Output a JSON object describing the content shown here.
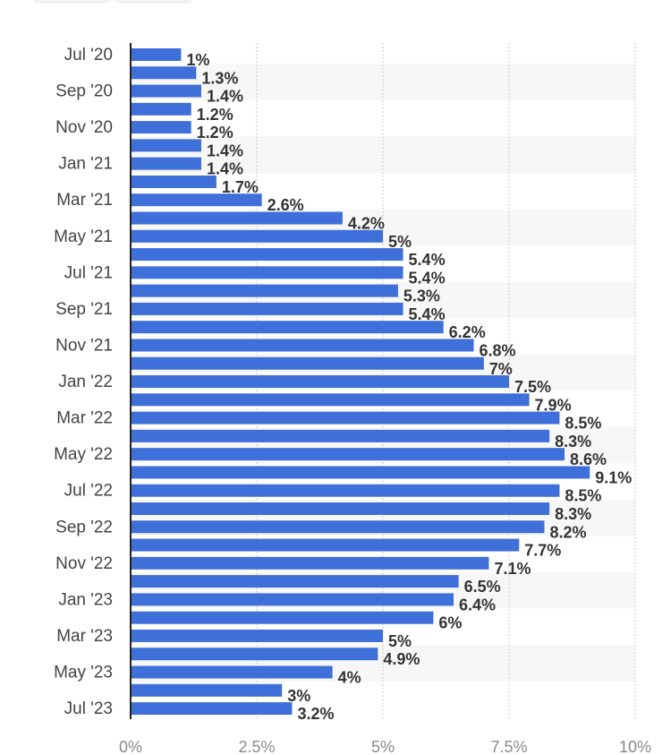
{
  "chart_data": {
    "type": "bar",
    "orientation": "horizontal",
    "categories": [
      "Jul '20",
      "Aug '20",
      "Sep '20",
      "Oct '20",
      "Nov '20",
      "Dec '20",
      "Jan '21",
      "Feb '21",
      "Mar '21",
      "Apr '21",
      "May '21",
      "Jun '21",
      "Jul '21",
      "Aug '21",
      "Sep '21",
      "Oct '21",
      "Nov '21",
      "Dec '21",
      "Jan '22",
      "Feb '22",
      "Mar '22",
      "Apr '22",
      "May '22",
      "Jun '22",
      "Jul '22",
      "Aug '22",
      "Sep '22",
      "Oct '22",
      "Nov '22",
      "Dec '22",
      "Jan '23",
      "Feb '23",
      "Mar '23",
      "Apr '23",
      "May '23",
      "Jun '23",
      "Jul '23"
    ],
    "category_labels_shown": [
      "Jul '20",
      "",
      "Sep '20",
      "",
      "Nov '20",
      "",
      "Jan '21",
      "",
      "Mar '21",
      "",
      "May '21",
      "",
      "Jul '21",
      "",
      "Sep '21",
      "",
      "Nov '21",
      "",
      "Jan '22",
      "",
      "Mar '22",
      "",
      "May '22",
      "",
      "Jul '22",
      "",
      "Sep '22",
      "",
      "Nov '22",
      "",
      "Jan '23",
      "",
      "Mar '23",
      "",
      "May '23",
      "",
      "Jul '23"
    ],
    "values": [
      1,
      1.3,
      1.4,
      1.2,
      1.2,
      1.4,
      1.4,
      1.7,
      2.6,
      4.2,
      5,
      5.4,
      5.4,
      5.3,
      5.4,
      6.2,
      6.8,
      7,
      7.5,
      7.9,
      8.5,
      8.3,
      8.6,
      9.1,
      8.5,
      8.3,
      8.2,
      7.7,
      7.1,
      6.5,
      6.4,
      6,
      5,
      4.9,
      4,
      3,
      3.2
    ],
    "value_labels": [
      "1%",
      "1.3%",
      "1.4%",
      "1.2%",
      "1.2%",
      "1.4%",
      "1.4%",
      "1.7%",
      "2.6%",
      "4.2%",
      "5%",
      "5.4%",
      "5.4%",
      "5.3%",
      "5.4%",
      "6.2%",
      "6.8%",
      "7%",
      "7.5%",
      "7.9%",
      "8.5%",
      "8.3%",
      "8.6%",
      "9.1%",
      "8.5%",
      "8.3%",
      "8.2%",
      "7.7%",
      "7.1%",
      "6.5%",
      "6.4%",
      "6%",
      "5%",
      "4.9%",
      "4%",
      "3%",
      "3.2%"
    ],
    "xlim": [
      0,
      10
    ],
    "x_ticks": [
      0,
      2.5,
      5,
      7.5,
      10
    ],
    "x_tick_labels": [
      "0%",
      "2.5%",
      "5%",
      "7.5%",
      "10%"
    ],
    "grid": true,
    "colors": {
      "bar": "#3f6fd8",
      "band": "#f7f7f7",
      "grid": "#c9c9c9",
      "axis": "#222222"
    }
  }
}
